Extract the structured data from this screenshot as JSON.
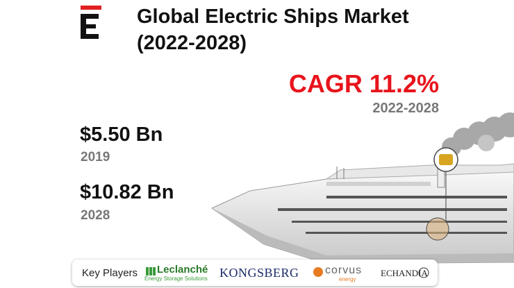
{
  "header": {
    "title_lines": [
      "Global Electric Ships Market",
      "(2022-2028)"
    ]
  },
  "cagr": {
    "label": "CAGR 11.2%",
    "period": "2022-2028"
  },
  "stats": [
    {
      "value": "$5.50 Bn",
      "year": "2019"
    },
    {
      "value": "$10.82 Bn",
      "year": "2028"
    }
  ],
  "key_players": {
    "label": "Key Players",
    "companies": [
      {
        "name": "Leclanché",
        "tagline": "Energy Storage Solutions"
      },
      {
        "name": "KONGSBERG"
      },
      {
        "name": "corvus",
        "tagline": "energy"
      },
      {
        "name": "ECHANDIA"
      }
    ]
  }
}
